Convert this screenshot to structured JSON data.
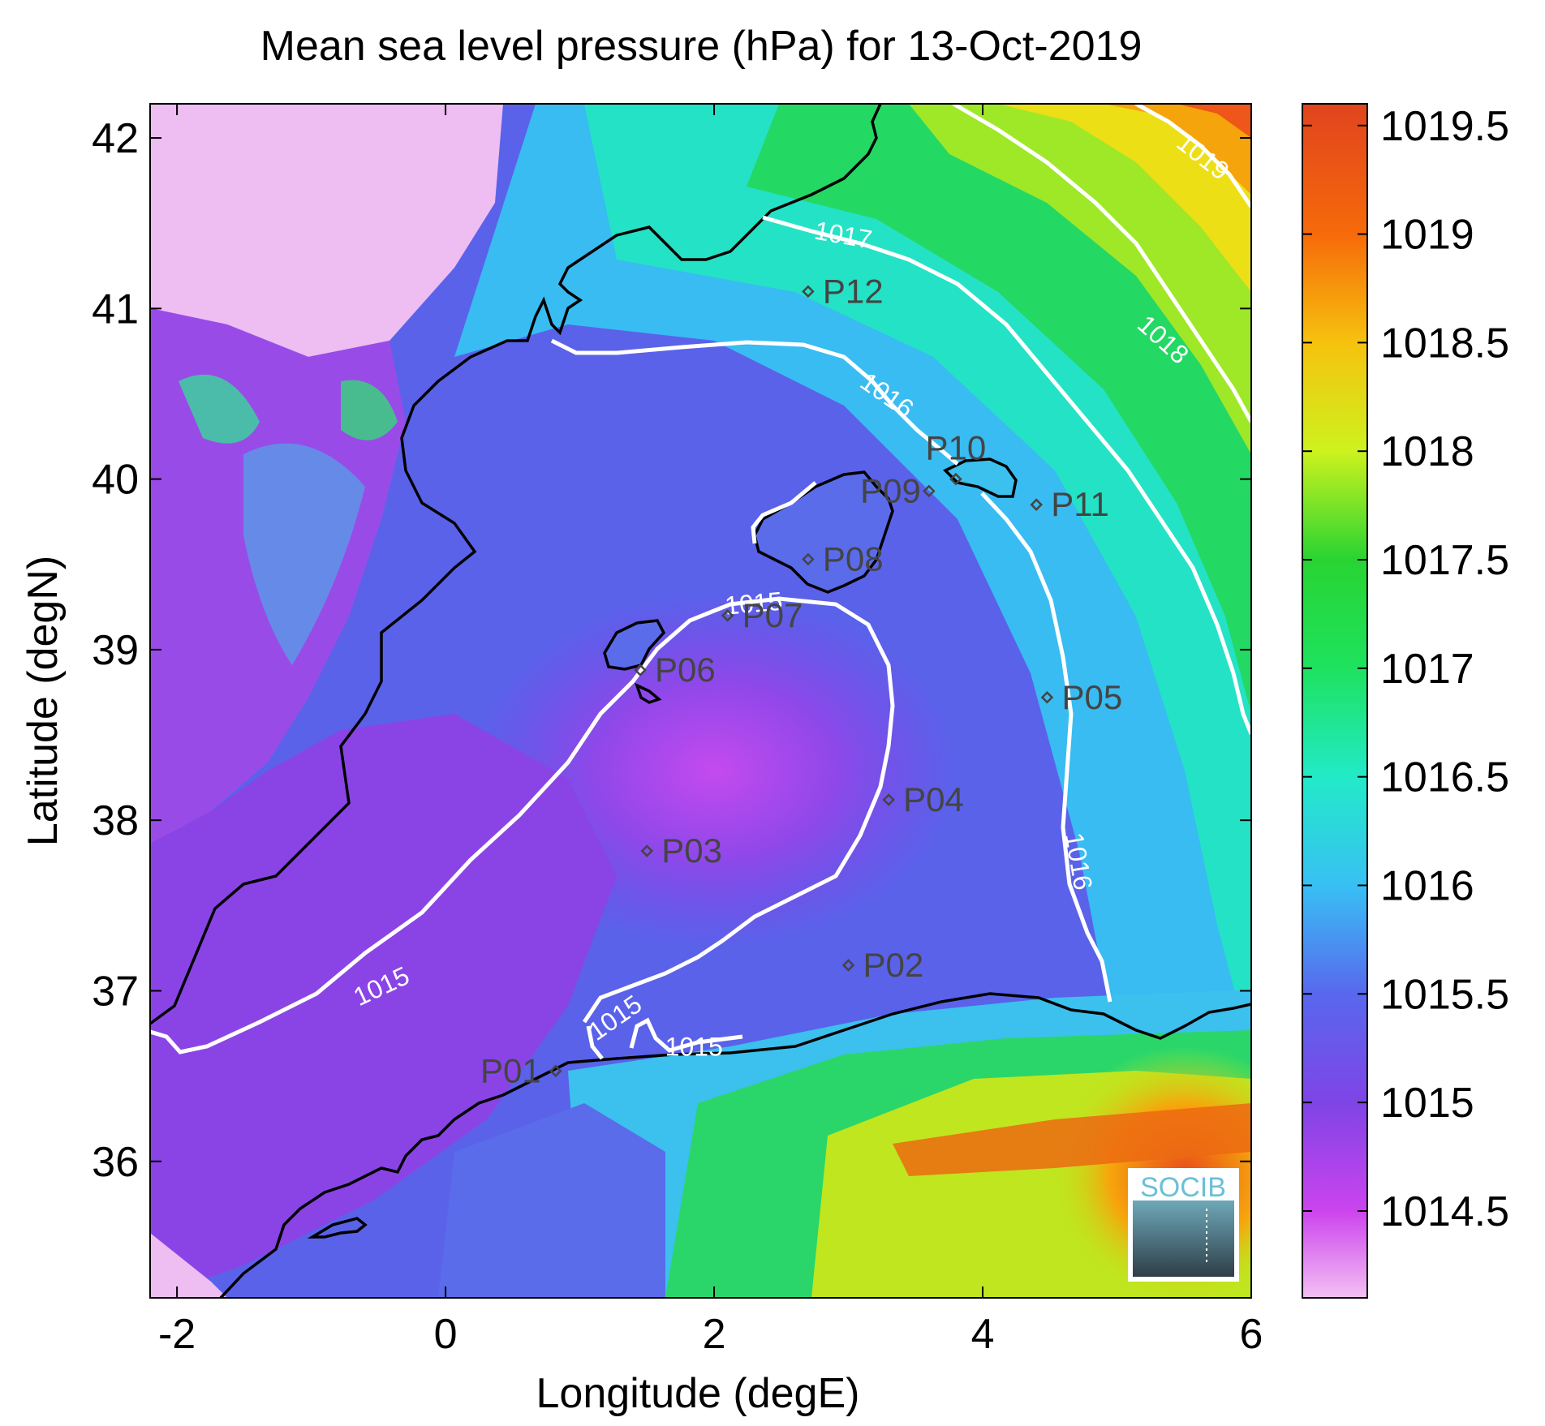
{
  "title": "Mean sea level pressure (hPa) for 13-Oct-2019",
  "x_axis": {
    "label": "Longitude (degE)",
    "range": [
      -2.2,
      6.0
    ],
    "ticks": [
      {
        "v": -2,
        "label": "-2"
      },
      {
        "v": 0,
        "label": "0"
      },
      {
        "v": 2,
        "label": "2"
      },
      {
        "v": 4,
        "label": "4"
      },
      {
        "v": 6,
        "label": "6"
      }
    ]
  },
  "y_axis": {
    "label": "Latitude (degN)",
    "range": [
      35.2,
      42.2
    ],
    "ticks": [
      {
        "v": 36,
        "label": "36"
      },
      {
        "v": 37,
        "label": "37"
      },
      {
        "v": 38,
        "label": "38"
      },
      {
        "v": 39,
        "label": "39"
      },
      {
        "v": 40,
        "label": "40"
      },
      {
        "v": 41,
        "label": "41"
      },
      {
        "v": 42,
        "label": "42"
      }
    ]
  },
  "colorbar": {
    "range": [
      1014.1,
      1019.6
    ],
    "ticks": [
      {
        "v": 1014.5,
        "label": "1014.5"
      },
      {
        "v": 1015,
        "label": "1015"
      },
      {
        "v": 1015.5,
        "label": "1015.5"
      },
      {
        "v": 1016,
        "label": "1016"
      },
      {
        "v": 1016.5,
        "label": "1016.5"
      },
      {
        "v": 1017,
        "label": "1017"
      },
      {
        "v": 1017.5,
        "label": "1017.5"
      },
      {
        "v": 1018,
        "label": "1018"
      },
      {
        "v": 1018.5,
        "label": "1018.5"
      },
      {
        "v": 1019,
        "label": "1019"
      },
      {
        "v": 1019.5,
        "label": "1019.5"
      }
    ],
    "stops": [
      {
        "v": 1014.1,
        "color": "#f4c0f4"
      },
      {
        "v": 1014.5,
        "color": "#cc44ee"
      },
      {
        "v": 1015,
        "color": "#7f44e6"
      },
      {
        "v": 1015.5,
        "color": "#5868ee"
      },
      {
        "v": 1016,
        "color": "#38c0f4"
      },
      {
        "v": 1016.5,
        "color": "#22eac8"
      },
      {
        "v": 1017,
        "color": "#1ee25e"
      },
      {
        "v": 1017.5,
        "color": "#28d432"
      },
      {
        "v": 1018,
        "color": "#cdf21e"
      },
      {
        "v": 1018.5,
        "color": "#f6c20e"
      },
      {
        "v": 1019,
        "color": "#f66a0a"
      },
      {
        "v": 1019.6,
        "color": "#e0441e"
      }
    ]
  },
  "contour_labels": [
    {
      "text": "1015",
      "lon": -0.45,
      "lat": 36.98,
      "rotate": -25
    },
    {
      "text": "1015",
      "lon": 2.3,
      "lat": 39.22,
      "rotate": -5
    },
    {
      "text": "1015",
      "lon": 1.3,
      "lat": 36.8,
      "rotate": -35
    },
    {
      "text": "1015",
      "lon": 1.85,
      "lat": 36.62,
      "rotate": 0
    },
    {
      "text": "1016",
      "lon": 3.25,
      "lat": 40.45,
      "rotate": 35
    },
    {
      "text": "1016",
      "lon": 4.65,
      "lat": 37.75,
      "rotate": 80
    },
    {
      "text": "1017",
      "lon": 2.95,
      "lat": 41.38,
      "rotate": 10
    },
    {
      "text": "1018",
      "lon": 5.3,
      "lat": 40.78,
      "rotate": 42
    },
    {
      "text": "1019",
      "lon": 5.6,
      "lat": 41.85,
      "rotate": 38
    }
  ],
  "stations": [
    {
      "id": "P01",
      "lon": 0.82,
      "lat": 36.53,
      "side": "left"
    },
    {
      "id": "P02",
      "lon": 3.0,
      "lat": 37.15,
      "side": "right"
    },
    {
      "id": "P03",
      "lon": 1.5,
      "lat": 37.82,
      "side": "right"
    },
    {
      "id": "P04",
      "lon": 3.3,
      "lat": 38.12,
      "side": "right"
    },
    {
      "id": "P05",
      "lon": 4.48,
      "lat": 38.72,
      "side": "right"
    },
    {
      "id": "P06",
      "lon": 1.45,
      "lat": 38.88,
      "side": "right"
    },
    {
      "id": "P07",
      "lon": 2.1,
      "lat": 39.2,
      "side": "right"
    },
    {
      "id": "P08",
      "lon": 2.7,
      "lat": 39.53,
      "side": "right"
    },
    {
      "id": "P09",
      "lon": 3.6,
      "lat": 39.93,
      "side": "leftup"
    },
    {
      "id": "P10",
      "lon": 3.8,
      "lat": 40.0,
      "side": "up"
    },
    {
      "id": "P11",
      "lon": 4.4,
      "lat": 39.85,
      "side": "right"
    },
    {
      "id": "P12",
      "lon": 2.7,
      "lat": 41.1,
      "side": "right"
    }
  ],
  "logo": {
    "text": "SOCIB",
    "color": "#6ac0d6"
  }
}
